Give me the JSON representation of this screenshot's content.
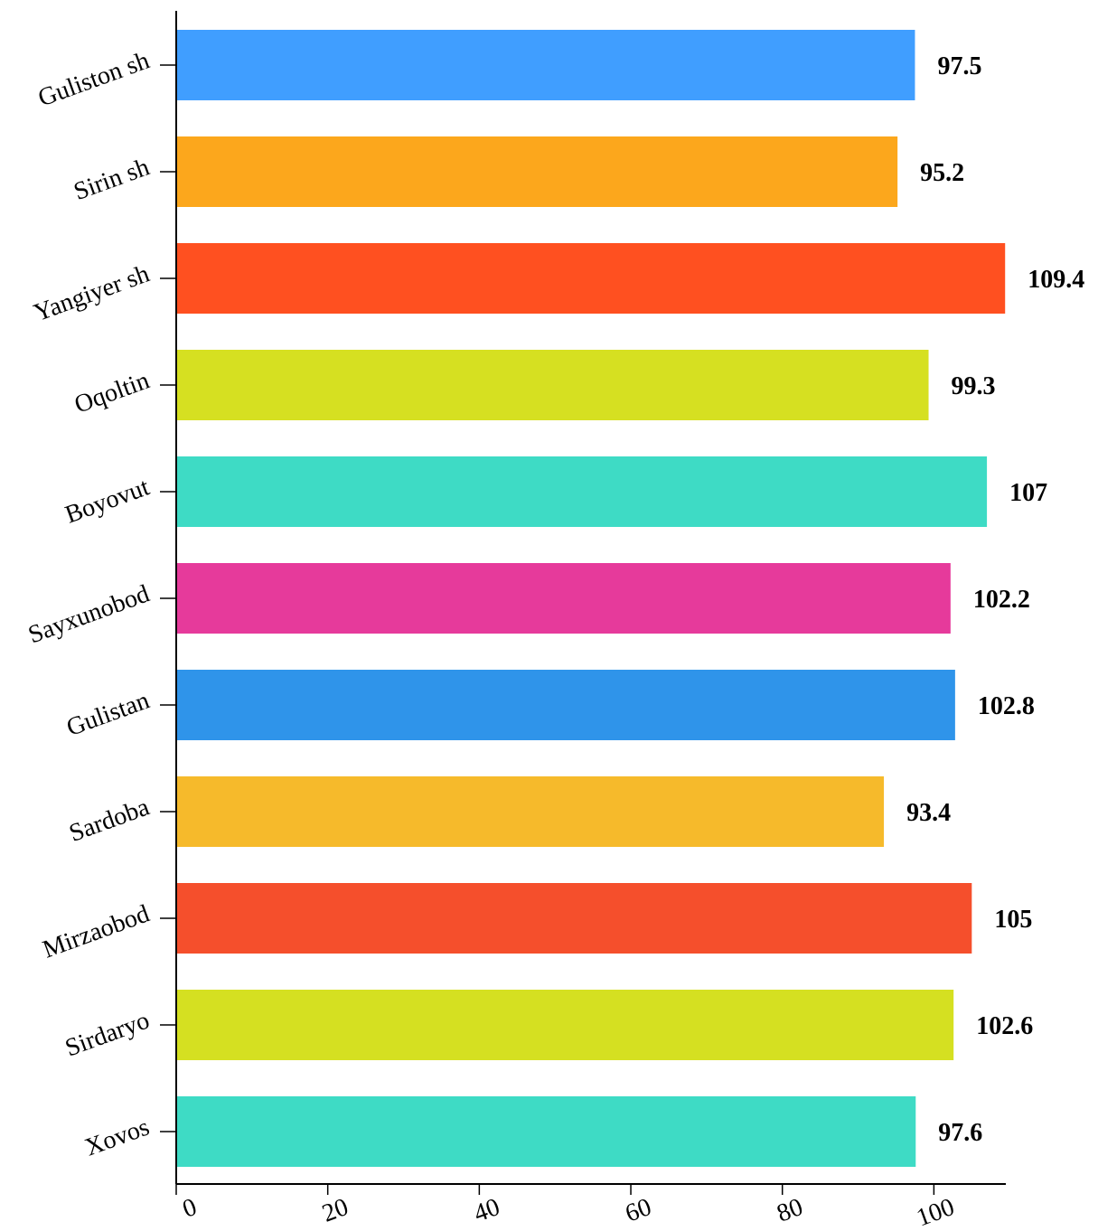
{
  "chart_data": {
    "type": "bar",
    "orientation": "horizontal",
    "title": "",
    "xlabel": "",
    "ylabel": "",
    "categories": [
      "Guliston sh",
      "Sirin sh",
      "Yangiyer sh",
      "Oqoltin",
      "Boyovut",
      "Sayxunobod",
      "Gulistan",
      "Sardoba",
      "Mirzaobod",
      "Sirdaryo",
      "Xovos"
    ],
    "values": [
      97.5,
      95.2,
      109.4,
      99.3,
      107,
      102.2,
      102.8,
      93.4,
      105,
      102.6,
      97.6
    ],
    "value_labels": [
      "97.5",
      "95.2",
      "109.4",
      "99.3",
      "107",
      "102.2",
      "102.8",
      "93.4",
      "105",
      "102.6",
      "97.6"
    ],
    "colors": [
      "#409EFF",
      "#FCA71C",
      "#FF5020",
      "#D6E021",
      "#3EDBC5",
      "#E63A9B",
      "#2F94EA",
      "#F6BA2B",
      "#F54F2C",
      "#D5E021",
      "#3EDBC5"
    ],
    "xlim": [
      0,
      110
    ],
    "xticks": [
      0,
      20,
      40,
      60,
      80,
      100
    ],
    "xtick_labels": [
      "0",
      "20",
      "40",
      "60",
      "80",
      "100"
    ],
    "grid": false,
    "legend": "none"
  }
}
